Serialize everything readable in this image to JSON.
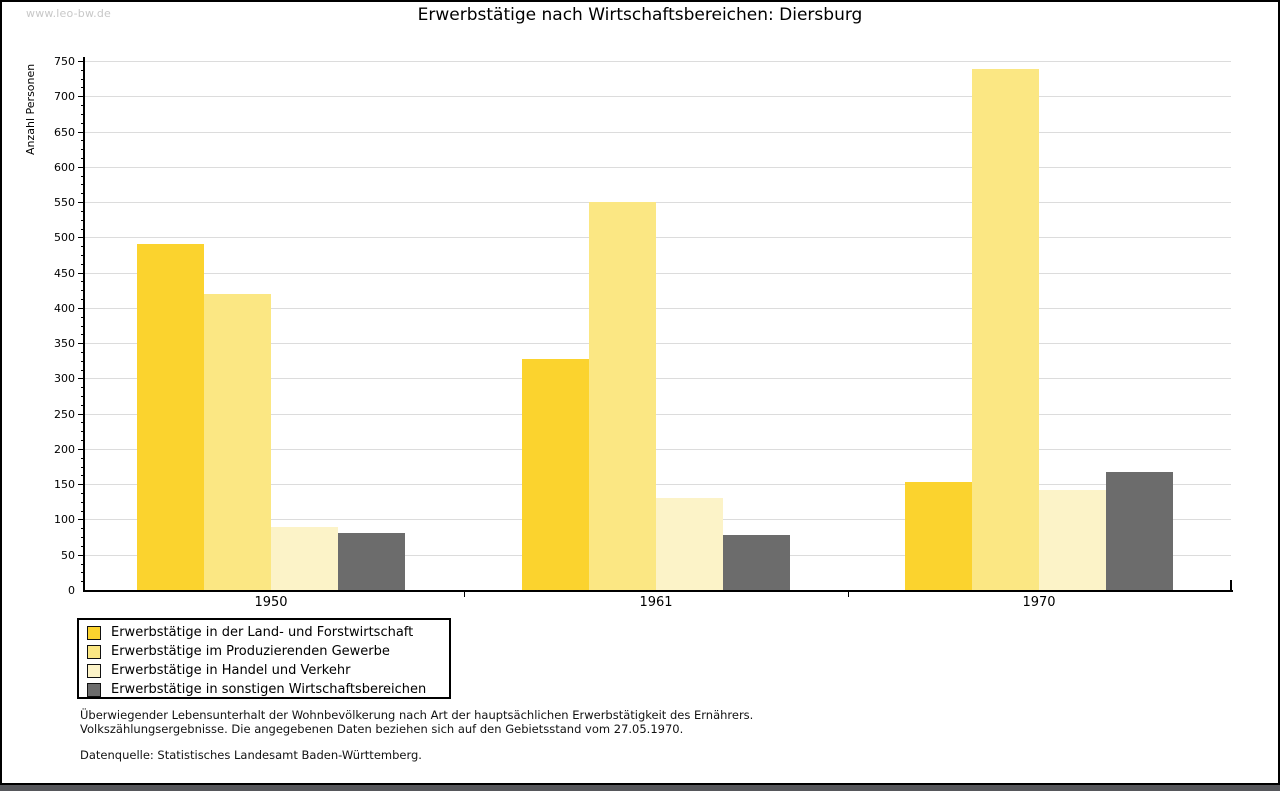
{
  "page": {
    "watermark": "www.leo-bw.de"
  },
  "chart_data": {
    "type": "bar",
    "title": "Erwerbstätige nach Wirtschaftsbereichen: Diersburg",
    "xlabel": "",
    "ylabel": "Anzahl Personen",
    "ylim": [
      0,
      750
    ],
    "ytick_step": 50,
    "minor_tick_step": 12.5,
    "grid": true,
    "legend_position": "bottom-left",
    "categories": [
      "1950",
      "1961",
      "1970"
    ],
    "series": [
      {
        "name": "Erwerbstätige in der Land- und Forstwirtschaft",
        "color": "#fbd32e",
        "values": [
          490,
          328,
          153
        ]
      },
      {
        "name": "Erwerbstätige im Produzierenden Gewerbe",
        "color": "#fbe783",
        "values": [
          420,
          550,
          739
        ]
      },
      {
        "name": "Erwerbstätige in Handel und Verkehr",
        "color": "#fcf3c8",
        "values": [
          90,
          131,
          142
        ]
      },
      {
        "name": "Erwerbstätige in sonstigen Wirtschaftsbereichen",
        "color": "#6c6c6c",
        "values": [
          81,
          78,
          167
        ]
      }
    ]
  },
  "footnotes": {
    "line1": "Überwiegender Lebensunterhalt der Wohnbevölkerung nach Art der hauptsächlichen Erwerbstätigkeit des Ernährers.",
    "line2": "Volkszählungsergebnisse. Die angegebenen Daten beziehen sich auf den Gebietsstand vom 27.05.1970.",
    "source": "Datenquelle: Statistisches Landesamt Baden-Württemberg."
  }
}
